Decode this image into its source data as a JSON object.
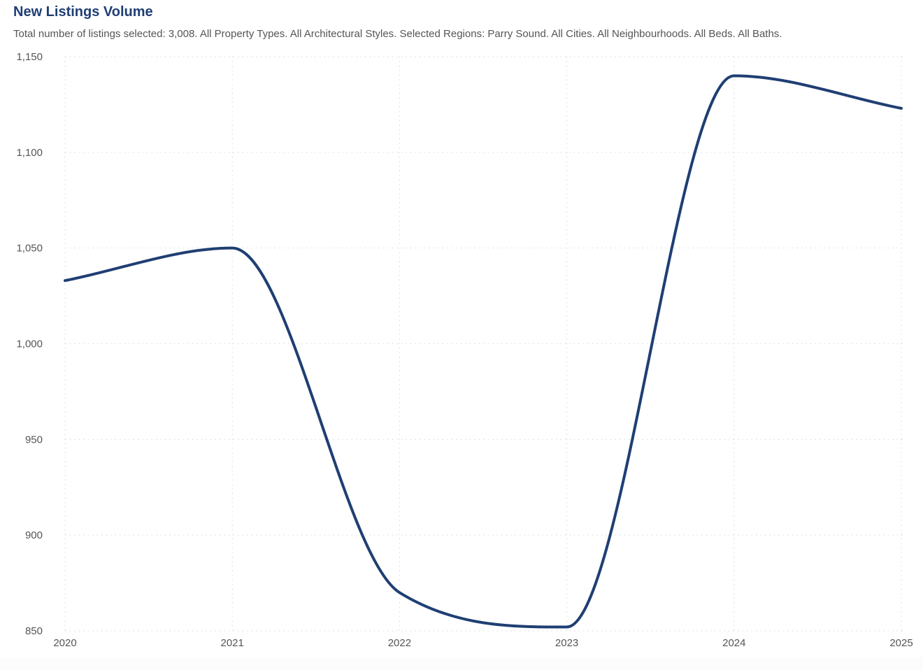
{
  "chart_data": {
    "type": "line",
    "title": "New Listings Volume",
    "subtitle": "Total number of listings selected: 3,008. All Property Types. All Architectural Styles. Selected Regions: Parry Sound. All Cities. All Neighbourhoods. All Beds. All Baths.",
    "x": [
      2020,
      2021,
      2022,
      2023,
      2024,
      2025
    ],
    "series": [
      {
        "values": [
          1033,
          1050,
          870,
          852,
          1140,
          1123
        ]
      }
    ],
    "xlim": [
      2020,
      2025
    ],
    "ylim": [
      850,
      1150
    ],
    "yticks": [
      850,
      900,
      950,
      1000,
      1050,
      1100,
      1150
    ],
    "ytick_labels": [
      "850",
      "900",
      "950",
      "1,000",
      "1,050",
      "1,100",
      "1,150"
    ],
    "xtick_labels": [
      "2020",
      "2021",
      "2022",
      "2023",
      "2024",
      "2025"
    ],
    "grid": true,
    "line_color": "#1f3f73",
    "smooth": true
  }
}
